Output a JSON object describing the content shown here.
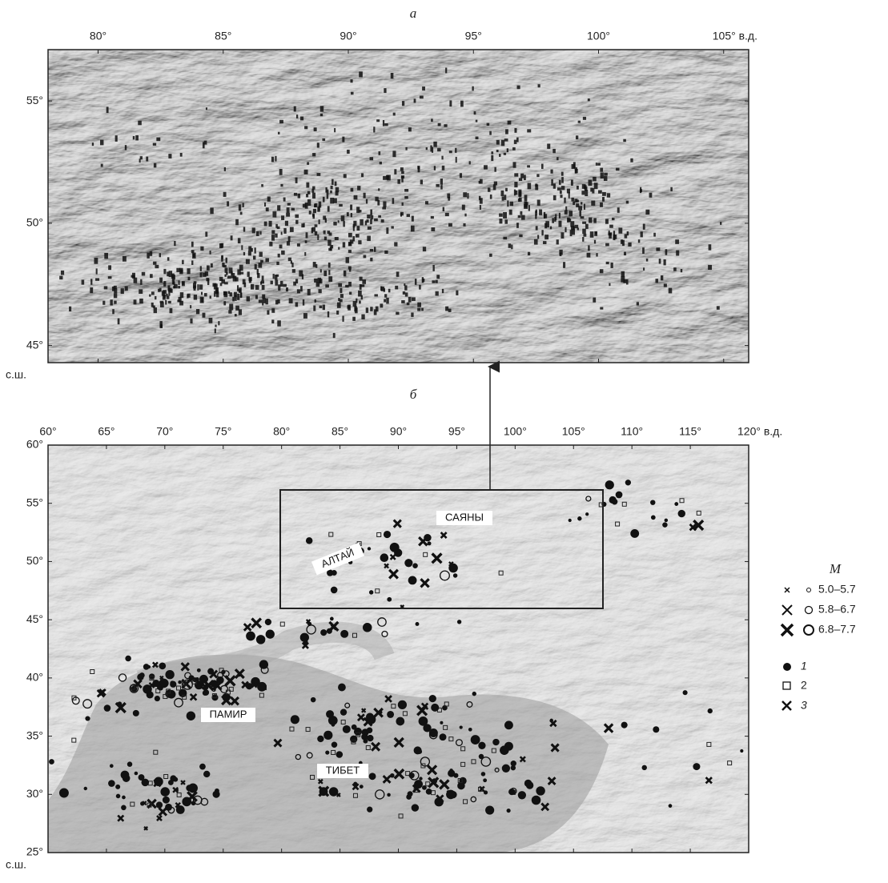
{
  "panels": [
    {
      "label": "а",
      "lonlim": [
        78,
        106
      ],
      "latlim": [
        44.3,
        57.1
      ],
      "lon_ticks": [
        {
          "value": 80,
          "label": "80°"
        },
        {
          "value": 85,
          "label": "85°"
        },
        {
          "value": 90,
          "label": "90°"
        },
        {
          "value": 95,
          "label": "95°"
        },
        {
          "value": 100,
          "label": "100°"
        },
        {
          "value": 105,
          "label": "105° в.д."
        }
      ],
      "lat_ticks": [
        {
          "value": 45,
          "label": "45°"
        },
        {
          "value": 50,
          "label": "50°"
        },
        {
          "value": 55,
          "label": "55°"
        }
      ],
      "lat_unit": "с.ш."
    },
    {
      "label": "б",
      "lonlim": [
        60,
        120
      ],
      "latlim": [
        25,
        60
      ],
      "lon_ticks": [
        {
          "value": 60,
          "label": "60°"
        },
        {
          "value": 65,
          "label": "65°"
        },
        {
          "value": 70,
          "label": "70°"
        },
        {
          "value": 75,
          "label": "75°"
        },
        {
          "value": 80,
          "label": "80°"
        },
        {
          "value": 85,
          "label": "85°"
        },
        {
          "value": 90,
          "label": "90°"
        },
        {
          "value": 95,
          "label": "95°"
        },
        {
          "value": 100,
          "label": "100°"
        },
        {
          "value": 105,
          "label": "105°"
        },
        {
          "value": 110,
          "label": "110°"
        },
        {
          "value": 115,
          "label": "115°"
        },
        {
          "value": 120,
          "label": "120° в.д."
        }
      ],
      "lat_ticks": [
        {
          "value": 25,
          "label": "25°"
        },
        {
          "value": 30,
          "label": "30°"
        },
        {
          "value": 35,
          "label": "35°"
        },
        {
          "value": 40,
          "label": "40°"
        },
        {
          "value": 45,
          "label": "45°"
        },
        {
          "value": 50,
          "label": "50°"
        },
        {
          "value": 55,
          "label": "55°"
        },
        {
          "value": 60,
          "label": "60°"
        }
      ],
      "lat_unit": "с.ш.",
      "regions": [
        "САЯНЫ",
        "АЛТАЙ",
        "ПАМИР",
        "ТИБЕТ"
      ]
    }
  ],
  "legend": {
    "title": "M",
    "magnitudes": [
      "5.0–5.7",
      "5.8–6.7",
      "6.8–7.7"
    ],
    "types": [
      "1",
      "2",
      "3"
    ]
  }
}
